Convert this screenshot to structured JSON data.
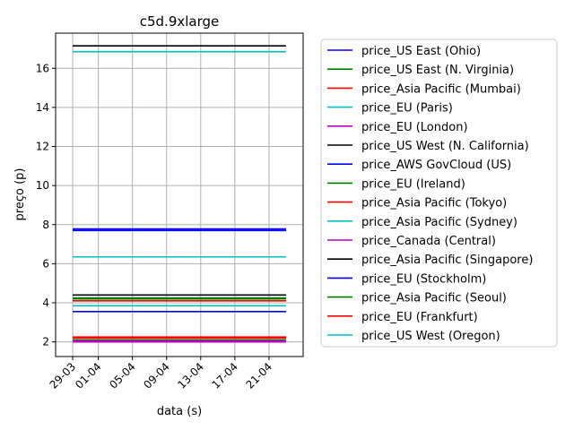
{
  "chart_data": {
    "type": "line",
    "title": "c5d.9xlarge",
    "xlabel": "data (s)",
    "ylabel": "preço (p)",
    "x_ticks": [
      "29-03",
      "01-04",
      "05-04",
      "09-04",
      "13-04",
      "17-04",
      "21-04"
    ],
    "x_range": [
      "2021-03-27",
      "2021-04-25"
    ],
    "x_extent": [
      "2021-03-29",
      "2021-04-23"
    ],
    "y_ticks": [
      2,
      4,
      6,
      8,
      10,
      12,
      14,
      16
    ],
    "ylim": [
      1.25,
      17.8
    ],
    "grid": true,
    "legend_position": "outside-right",
    "series": [
      {
        "name": "price_US East (Ohio)",
        "color": "#0000ff",
        "values": [
          3.55,
          3.55
        ]
      },
      {
        "name": "price_US East (N. Virginia)",
        "color": "#008000",
        "values": [
          2.1,
          2.1
        ]
      },
      {
        "name": "price_Asia Pacific (Mumbai)",
        "color": "#ff0000",
        "values": [
          2.2,
          2.2
        ]
      },
      {
        "name": "price_EU (Paris)",
        "color": "#00bfbf",
        "values": [
          6.35,
          6.35
        ]
      },
      {
        "name": "price_EU (London)",
        "color": "#bf00bf",
        "values": [
          2.0,
          2.0
        ]
      },
      {
        "name": "price_US West (N. California)",
        "color": "#000000",
        "values": [
          17.15,
          17.15
        ]
      },
      {
        "name": "price_AWS GovCloud (US)",
        "color": "#0000ff",
        "values": [
          7.78,
          7.78
        ]
      },
      {
        "name": "price_EU (Ireland)",
        "color": "#008000",
        "values": [
          4.2,
          4.2
        ]
      },
      {
        "name": "price_Asia Pacific (Tokyo)",
        "color": "#ff0000",
        "values": [
          4.1,
          4.1
        ]
      },
      {
        "name": "price_Asia Pacific (Sydney)",
        "color": "#00bfbf",
        "values": [
          16.85,
          16.85
        ]
      },
      {
        "name": "price_Canada (Central)",
        "color": "#bf00bf",
        "values": [
          2.05,
          2.05
        ]
      },
      {
        "name": "price_Asia Pacific (Singapore)",
        "color": "#000000",
        "values": [
          4.4,
          4.4
        ]
      },
      {
        "name": "price_EU (Stockholm)",
        "color": "#0000ff",
        "values": [
          7.7,
          7.7
        ]
      },
      {
        "name": "price_Asia Pacific (Seoul)",
        "color": "#008000",
        "values": [
          4.25,
          4.25
        ]
      },
      {
        "name": "price_EU (Frankfurt)",
        "color": "#ff0000",
        "values": [
          2.25,
          2.25
        ]
      },
      {
        "name": "price_US West (Oregon)",
        "color": "#00bfbf",
        "values": [
          3.85,
          3.85
        ]
      }
    ]
  }
}
